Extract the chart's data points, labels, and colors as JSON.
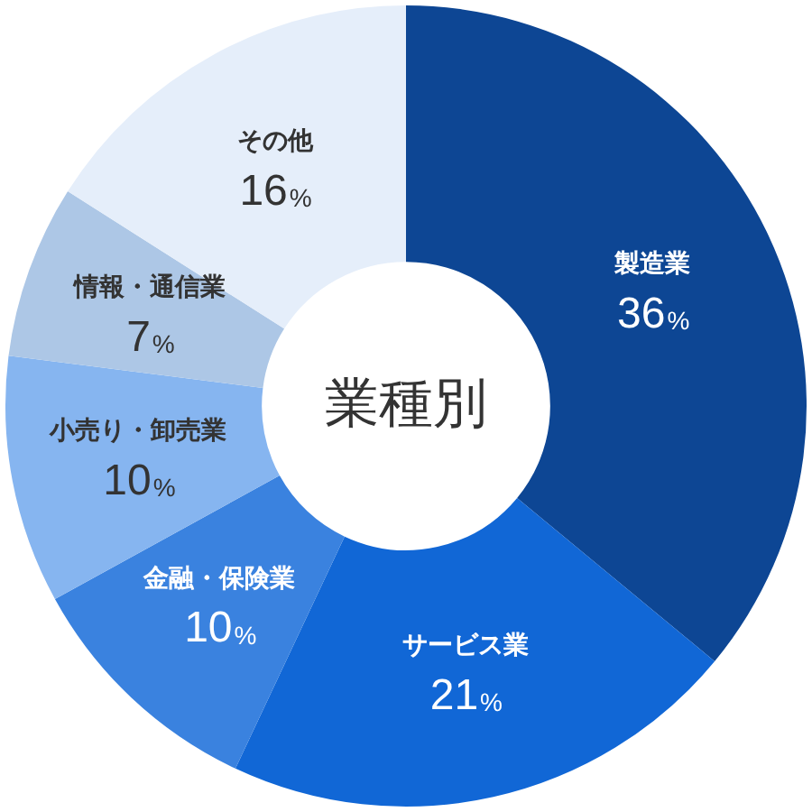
{
  "chart_data": {
    "type": "donut",
    "title": "業種別",
    "categories": [
      "製造業",
      "サービス業",
      "金融・保険業",
      "小売り・卸売業",
      "情報・通信業",
      "その他"
    ],
    "values": [
      36,
      21,
      10,
      10,
      7,
      16
    ],
    "value_labels": [
      "36%",
      "21%",
      "10%",
      "10%",
      "7%",
      "16%"
    ],
    "colors": [
      "#0d4694",
      "#1167d6",
      "#3a82df",
      "#86b5f0",
      "#adc7e6",
      "#e5eefa"
    ],
    "legend": false
  }
}
